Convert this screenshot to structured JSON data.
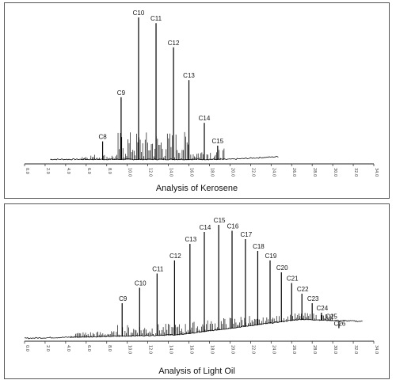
{
  "chart_data": [
    {
      "type": "line",
      "title": "Analysis of Kerosene",
      "xlim": [
        0,
        34
      ],
      "x_ticks": [
        "0.0",
        "2.0",
        "4.0",
        "6.0",
        "8.0",
        "10.0",
        "12.0",
        "14.0",
        "16.0",
        "18.0",
        "20.0",
        "22.0",
        "24.0",
        "26.0",
        "28.0",
        "30.0",
        "32.0",
        "34.0"
      ],
      "peaks": [
        {
          "label": "C8",
          "x": 7.6,
          "height": 0.13
        },
        {
          "label": "C9",
          "x": 9.4,
          "height": 0.44
        },
        {
          "label": "C10",
          "x": 11.1,
          "height": 1.0
        },
        {
          "label": "C11",
          "x": 12.8,
          "height": 0.96
        },
        {
          "label": "C12",
          "x": 14.5,
          "height": 0.79
        },
        {
          "label": "C13",
          "x": 16.0,
          "height": 0.56
        },
        {
          "label": "C14",
          "x": 17.5,
          "height": 0.26
        },
        {
          "label": "C15",
          "x": 18.8,
          "height": 0.1
        }
      ]
    },
    {
      "type": "line",
      "title": "Analysis of Light Oil",
      "xlim": [
        0,
        34
      ],
      "x_ticks": [
        "0.0",
        "2.0",
        "4.0",
        "6.0",
        "8.0",
        "10.0",
        "12.0",
        "14.0",
        "16.0",
        "18.0",
        "20.0",
        "22.0",
        "24.0",
        "26.0",
        "28.0",
        "30.0",
        "32.0",
        "34.0"
      ],
      "peaks": [
        {
          "label": "C9",
          "x": 9.5,
          "height": 0.3
        },
        {
          "label": "C10",
          "x": 11.2,
          "height": 0.43
        },
        {
          "label": "C11",
          "x": 12.9,
          "height": 0.55
        },
        {
          "label": "C12",
          "x": 14.6,
          "height": 0.66
        },
        {
          "label": "C13",
          "x": 16.1,
          "height": 0.8
        },
        {
          "label": "C14",
          "x": 17.5,
          "height": 0.9
        },
        {
          "label": "C15",
          "x": 18.9,
          "height": 0.96
        },
        {
          "label": "C16",
          "x": 20.2,
          "height": 0.91
        },
        {
          "label": "C17",
          "x": 21.5,
          "height": 0.84
        },
        {
          "label": "C18",
          "x": 22.7,
          "height": 0.74
        },
        {
          "label": "C19",
          "x": 23.9,
          "height": 0.66
        },
        {
          "label": "C20",
          "x": 25.0,
          "height": 0.56
        },
        {
          "label": "C21",
          "x": 26.0,
          "height": 0.47
        },
        {
          "label": "C22",
          "x": 27.0,
          "height": 0.38
        },
        {
          "label": "C23",
          "x": 28.0,
          "height": 0.3
        },
        {
          "label": "C24",
          "x": 28.9,
          "height": 0.22
        },
        {
          "label": "C25",
          "x": 29.8,
          "height": 0.15
        },
        {
          "label": "C26",
          "x": 30.6,
          "height": 0.09
        }
      ]
    }
  ]
}
